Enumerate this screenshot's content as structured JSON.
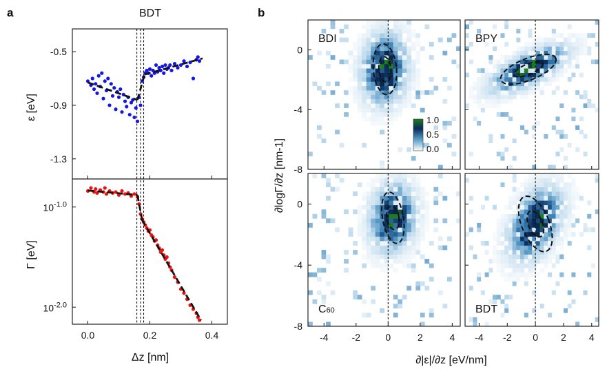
{
  "panel_labels": {
    "a": "a",
    "b": "b"
  },
  "chart_data": [
    {
      "type": "scatter",
      "panel": "a-top",
      "title": "BDT",
      "xlabel": "Δz [nm]",
      "ylabel": "ε [eV]",
      "xlim": [
        -0.05,
        0.45
      ],
      "ylim": [
        -1.45,
        -0.33
      ],
      "xticks": [
        "0.0",
        "0.2",
        "0.4"
      ],
      "yticks": [
        "-0.5",
        "-0.9",
        "-1.3"
      ],
      "ytick_values": [
        -0.5,
        -0.9,
        -1.3
      ],
      "xtick_values": [
        0.0,
        0.2,
        0.4
      ],
      "vertical_lines_x": [
        0.158,
        0.17,
        0.18
      ],
      "marker_color": "#1515e8",
      "fit_segments": [
        [
          [
            0.0,
            -0.73
          ],
          [
            0.16,
            -0.86
          ]
        ],
        [
          [
            0.16,
            -0.86
          ],
          [
            0.183,
            -0.67
          ]
        ],
        [
          [
            0.183,
            -0.67
          ],
          [
            0.37,
            -0.55
          ]
        ]
      ],
      "x": [
        0.0,
        0.01,
        0.015,
        0.02,
        0.025,
        0.03,
        0.035,
        0.04,
        0.045,
        0.05,
        0.055,
        0.06,
        0.065,
        0.07,
        0.075,
        0.08,
        0.085,
        0.09,
        0.095,
        0.1,
        0.105,
        0.11,
        0.115,
        0.12,
        0.125,
        0.13,
        0.135,
        0.14,
        0.145,
        0.15,
        0.155,
        0.16,
        0.165,
        0.17,
        0.175,
        0.18,
        0.185,
        0.19,
        0.195,
        0.2,
        0.205,
        0.21,
        0.215,
        0.22,
        0.225,
        0.23,
        0.235,
        0.24,
        0.245,
        0.25,
        0.255,
        0.26,
        0.265,
        0.27,
        0.28,
        0.29,
        0.3,
        0.31,
        0.32,
        0.33,
        0.34,
        0.35,
        0.355,
        0.36
      ],
      "y": [
        -0.72,
        -0.75,
        -0.7,
        -0.78,
        -0.74,
        -0.81,
        -0.68,
        -0.76,
        -0.66,
        -0.85,
        -0.72,
        -0.79,
        -0.7,
        -0.9,
        -0.74,
        -0.83,
        -0.77,
        -0.93,
        -0.8,
        -0.84,
        -0.78,
        -0.95,
        -0.82,
        -0.87,
        -0.91,
        -0.84,
        -0.97,
        -0.88,
        -0.86,
        -0.99,
        -0.92,
        -1.02,
        -0.84,
        -0.9,
        -0.72,
        -0.69,
        -0.66,
        -0.64,
        -0.66,
        -0.63,
        -0.68,
        -0.64,
        -0.66,
        -0.6,
        -0.65,
        -0.62,
        -0.64,
        -0.61,
        -0.66,
        -0.6,
        -0.63,
        -0.62,
        -0.6,
        -0.64,
        -0.59,
        -0.62,
        -0.6,
        -0.57,
        -0.61,
        -0.58,
        -0.7,
        -0.56,
        -0.54,
        -0.57
      ]
    },
    {
      "type": "scatter",
      "panel": "a-bottom",
      "xlabel": "Δz [nm]",
      "ylabel": "Γ [eV]",
      "yscale": "log",
      "xlim": [
        -0.05,
        0.45
      ],
      "ylim": [
        -2.17,
        -0.72
      ],
      "yticks": [
        "10-1.0",
        "10-2.0"
      ],
      "ytick_exponents": [
        -1.0,
        -2.0
      ],
      "xticks": [
        "0.0",
        "0.2",
        "0.4"
      ],
      "xtick_values": [
        0.0,
        0.2,
        0.4
      ],
      "marker_color": "#ee1111",
      "fit_segments": [
        [
          [
            0.0,
            -0.835
          ],
          [
            0.16,
            -0.88
          ]
        ],
        [
          [
            0.16,
            -0.88
          ],
          [
            0.175,
            -1.13
          ]
        ],
        [
          [
            0.175,
            -1.13
          ],
          [
            0.365,
            -2.13
          ]
        ]
      ],
      "x": [
        0.0,
        0.01,
        0.02,
        0.025,
        0.03,
        0.04,
        0.05,
        0.055,
        0.06,
        0.07,
        0.08,
        0.09,
        0.1,
        0.11,
        0.12,
        0.13,
        0.14,
        0.15,
        0.16,
        0.165,
        0.17,
        0.175,
        0.18,
        0.185,
        0.19,
        0.195,
        0.2,
        0.205,
        0.21,
        0.215,
        0.22,
        0.225,
        0.23,
        0.235,
        0.24,
        0.245,
        0.25,
        0.255,
        0.26,
        0.265,
        0.27,
        0.28,
        0.29,
        0.3,
        0.31,
        0.32,
        0.33,
        0.34,
        0.35,
        0.355,
        0.36
      ],
      "y": [
        -0.84,
        -0.81,
        -0.85,
        -0.82,
        -0.86,
        -0.83,
        -0.85,
        -0.81,
        -0.87,
        -0.84,
        -0.86,
        -0.85,
        -0.88,
        -0.84,
        -0.87,
        -0.86,
        -0.89,
        -0.87,
        -0.9,
        -0.97,
        -1.07,
        -1.12,
        -1.15,
        -1.18,
        -1.21,
        -1.24,
        -1.23,
        -1.28,
        -1.3,
        -1.34,
        -1.33,
        -1.38,
        -1.41,
        -1.45,
        -1.43,
        -1.48,
        -1.52,
        -1.5,
        -1.56,
        -1.6,
        -1.63,
        -1.7,
        -1.75,
        -1.82,
        -1.86,
        -1.92,
        -1.98,
        -2.02,
        -2.06,
        -2.1,
        -2.13
      ]
    },
    {
      "type": "heatmap",
      "panel": "b",
      "xlabel": "∂|ε|/∂z [eV/nm]",
      "ylabel": "∂logΓ/∂z [nm-1]",
      "xlim": [
        -5,
        4.5
      ],
      "ylim": [
        -8,
        2
      ],
      "xticks": [
        "-4",
        "-2",
        "0",
        "2",
        "4"
      ],
      "xtick_values": [
        -4,
        -2,
        0,
        2,
        4
      ],
      "yticks": [
        "0",
        "-4",
        "-8"
      ],
      "ytick_values": [
        0,
        -4,
        -8
      ],
      "colorbar": {
        "ticks": [
          "1.0",
          "0.5",
          "0.0"
        ],
        "range": [
          0,
          1
        ]
      },
      "subpanels": [
        {
          "label": "BDI",
          "center": [
            -0.2,
            -1.3
          ],
          "inner": [
            0.75,
            1.7,
            5
          ],
          "outer": [
            1.45,
            3.4,
            5
          ],
          "spread": [
            0.9,
            1.5
          ],
          "fit_corr": 0.1
        },
        {
          "label": "BPY",
          "center": [
            -0.5,
            -1.3
          ],
          "inner": [
            2.2,
            0.7,
            22
          ],
          "outer": [
            4.2,
            1.45,
            22
          ],
          "spread": [
            1.7,
            1.0
          ],
          "fit_corr": 0.7
        },
        {
          "label": "C60",
          "center": [
            0.3,
            -0.9
          ],
          "inner": [
            0.75,
            1.55,
            10
          ],
          "outer": [
            1.3,
            3.4,
            10
          ],
          "spread": [
            0.9,
            1.4
          ],
          "fit_corr": 0.15
        },
        {
          "label": "BDT",
          "center": [
            0.0,
            -1.3
          ],
          "inner": [
            1.0,
            1.8,
            22
          ],
          "outer": [
            1.95,
            3.85,
            22
          ],
          "spread": [
            1.2,
            1.5
          ],
          "fit_corr": 0.45
        }
      ]
    }
  ]
}
